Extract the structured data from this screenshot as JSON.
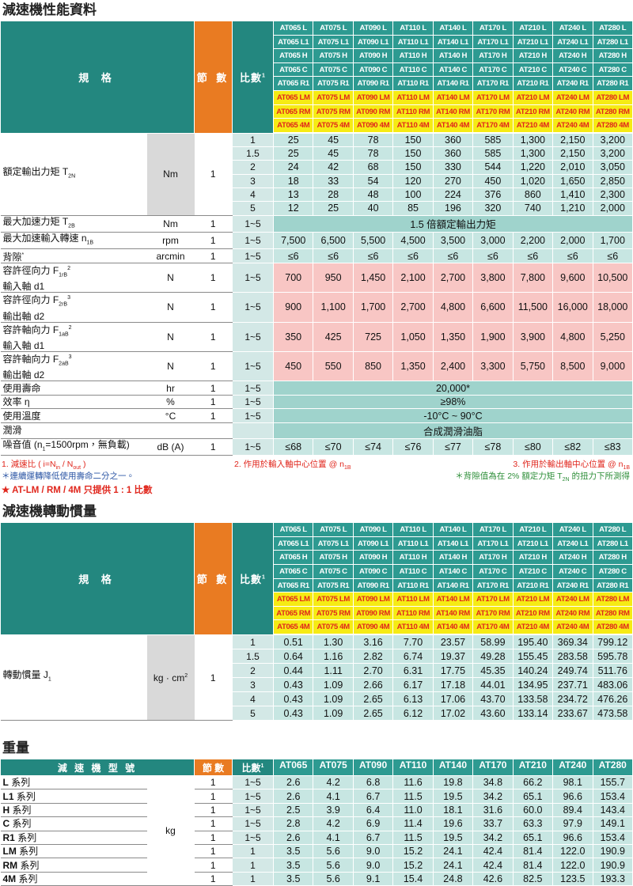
{
  "sections": [
    {
      "title": "減速機性能資料",
      "header": {
        "spec": "規 格",
        "stages": "節 數",
        "ratio": [
          "比數",
          {
            "sup": "1"
          }
        ],
        "models": [
          [
            "AT065 L",
            "AT065 L1",
            "AT065 H",
            "AT065 C",
            "AT065 R1",
            "AT065 LM",
            "AT065 RM",
            "AT065 4M"
          ],
          [
            "AT075 L",
            "AT075 L1",
            "AT075 H",
            "AT075 C",
            "AT075 R1",
            "AT075 LM",
            "AT075 RM",
            "AT075 4M"
          ],
          [
            "AT090 L",
            "AT090 L1",
            "AT090 H",
            "AT090 C",
            "AT090 R1",
            "AT090 LM",
            "AT090 RM",
            "AT090 4M"
          ],
          [
            "AT110 L",
            "AT110 L1",
            "AT110 H",
            "AT110 C",
            "AT110 R1",
            "AT110 LM",
            "AT110 RM",
            "AT110 4M"
          ],
          [
            "AT140 L",
            "AT140 L1",
            "AT140 H",
            "AT140 C",
            "AT140 R1",
            "AT140 LM",
            "AT140 RM",
            "AT140 4M"
          ],
          [
            "AT170 L",
            "AT170 L1",
            "AT170 H",
            "AT170 C",
            "AT170 R1",
            "AT170 LM",
            "AT170 RM",
            "AT170 4M"
          ],
          [
            "AT210 L",
            "AT210 L1",
            "AT210 H",
            "AT210 C",
            "AT210 R1",
            "AT210 LM",
            "AT210 RM",
            "AT210 4M"
          ],
          [
            "AT240 L",
            "AT240 L1",
            "AT240 H",
            "AT240 C",
            "AT240 R1",
            "AT240 LM",
            "AT240 RM",
            "AT240 4M"
          ],
          [
            "AT280 L",
            "AT280 L1",
            "AT280 H",
            "AT280 C",
            "AT280 R1",
            "AT280 LM",
            "AT280 RM",
            "AT280 4M"
          ]
        ]
      },
      "groups": [
        {
          "label": [
            "額定輸出力矩 T",
            {
              "sub": "2N"
            }
          ],
          "unit": "Nm",
          "stages": "1",
          "style": "light",
          "lines": [
            {
              "ratio": "1",
              "values": [
                "25",
                "45",
                "78",
                "150",
                "360",
                "585",
                "1,300",
                "2,150",
                "3,200"
              ]
            },
            {
              "ratio": "1.5",
              "values": [
                "25",
                "45",
                "78",
                "150",
                "360",
                "585",
                "1,300",
                "2,150",
                "3,200"
              ]
            },
            {
              "ratio": "2",
              "values": [
                "24",
                "42",
                "68",
                "150",
                "330",
                "544",
                "1,220",
                "2,010",
                "3,050"
              ]
            },
            {
              "ratio": "3",
              "values": [
                "18",
                "33",
                "54",
                "120",
                "270",
                "450",
                "1,020",
                "1,650",
                "2,850"
              ]
            },
            {
              "ratio": "4",
              "values": [
                "13",
                "28",
                "48",
                "100",
                "224",
                "376",
                "860",
                "1,410",
                "2,300"
              ]
            },
            {
              "ratio": "5",
              "values": [
                "12",
                "25",
                "40",
                "85",
                "196",
                "320",
                "740",
                "1,210",
                "2,000"
              ]
            }
          ]
        },
        {
          "label": [
            "最大加速力矩 T",
            {
              "sub": "2B"
            }
          ],
          "unit": "Nm",
          "stages": "1",
          "style": "merged",
          "lines": [
            {
              "ratio": "1~5",
              "merged": "1.5 倍額定輸出力矩"
            }
          ]
        },
        {
          "label": [
            "最大加速輸入轉速 n",
            {
              "sub": "1B"
            }
          ],
          "unit": "rpm",
          "stages": "1",
          "style": "light",
          "lines": [
            {
              "ratio": "1~5",
              "values": [
                "7,500",
                "6,500",
                "5,500",
                "4,500",
                "3,500",
                "3,000",
                "2,200",
                "2,000",
                "1,700"
              ]
            }
          ]
        },
        {
          "label": [
            "背隙",
            {
              "sup": "*"
            }
          ],
          "unit": "arcmin",
          "stages": "1",
          "style": "light",
          "lines": [
            {
              "ratio": "1~5",
              "values": [
                "≤6",
                "≤6",
                "≤6",
                "≤6",
                "≤6",
                "≤6",
                "≤6",
                "≤6",
                "≤6"
              ]
            }
          ]
        },
        {
          "label": [
            "容許徑向力 F",
            {
              "sub": "1rB"
            },
            {
              "sup": "2"
            }
          ],
          "label2": "輸入軸 d1",
          "unit": "N",
          "stages": "1",
          "style": "pink",
          "lines": [
            {
              "ratio": "1~5",
              "values": [
                "700",
                "950",
                "1,450",
                "2,100",
                "2,700",
                "3,800",
                "7,800",
                "9,600",
                "10,500"
              ]
            }
          ]
        },
        {
          "label": [
            "容許徑向力 F",
            {
              "sub": "2rB"
            },
            {
              "sup": "3"
            }
          ],
          "label2": "輸出軸 d2",
          "unit": "N",
          "stages": "1",
          "style": "pink",
          "lines": [
            {
              "ratio": "1~5",
              "values": [
                "900",
                "1,100",
                "1,700",
                "2,700",
                "4,800",
                "6,600",
                "11,500",
                "16,000",
                "18,000"
              ]
            }
          ]
        },
        {
          "label": [
            "容許軸向力 F",
            {
              "sub": "1aB"
            },
            {
              "sup": "2"
            }
          ],
          "label2": "輸入軸 d1",
          "unit": "N",
          "stages": "1",
          "style": "pink",
          "lines": [
            {
              "ratio": "1~5",
              "values": [
                "350",
                "425",
                "725",
                "1,050",
                "1,350",
                "1,900",
                "3,900",
                "4,800",
                "5,250"
              ]
            }
          ]
        },
        {
          "label": [
            "容許軸向力 F",
            {
              "sub": "2aB"
            },
            {
              "sup": "3"
            }
          ],
          "label2": "輸出軸 d2",
          "unit": "N",
          "stages": "1",
          "style": "pink",
          "lines": [
            {
              "ratio": "1~5",
              "values": [
                "450",
                "550",
                "850",
                "1,350",
                "2,400",
                "3,300",
                "5,750",
                "8,500",
                "9,000"
              ]
            }
          ]
        },
        {
          "label": "使用壽命",
          "unit": "hr",
          "stages": "1",
          "style": "merged",
          "lines": [
            {
              "ratio": "1~5",
              "merged": "20,000*"
            }
          ]
        },
        {
          "label": "效率 η",
          "unit": "%",
          "stages": "1",
          "style": "merged",
          "lines": [
            {
              "ratio": "1~5",
              "merged": "≥98%"
            }
          ]
        },
        {
          "label": "使用溫度",
          "unit": "°C",
          "stages": "1",
          "style": "merged",
          "lines": [
            {
              "ratio": "1~5",
              "merged": "-10°C ~ 90°C"
            }
          ]
        },
        {
          "label": "潤滑",
          "unit": null,
          "stages": null,
          "style": "merged",
          "lines": [
            {
              "ratio": null,
              "merged": "合成潤滑油脂"
            }
          ]
        },
        {
          "label": [
            "噪音值 (n",
            {
              "sub": "1"
            },
            "=1500rpm，無負載)"
          ],
          "unit": "dB (A)",
          "stages": "1",
          "style": "light",
          "lines": [
            {
              "ratio": "1~5",
              "values": [
                "≤68",
                "≤70",
                "≤74",
                "≤76",
                "≤77",
                "≤78",
                "≤80",
                "≤82",
                "≤83"
              ]
            }
          ]
        }
      ],
      "notes": {
        "ratio": [
          "1. 減速比 ( i=N",
          {
            "sub": "in"
          },
          " / N",
          {
            "sub": "out"
          },
          " )"
        ],
        "input": [
          "2. 作用於輸入軸中心位置 @ n",
          {
            "sub": "1B"
          }
        ],
        "output": [
          "3. 作用於輸出軸中心位置 @ n",
          {
            "sub": "1B"
          }
        ],
        "life": "＊連續運轉降低使用壽命二分之一。",
        "backlash": [
          "＊背隙值為在 2% 額定力矩 T",
          {
            "sub": "2N"
          },
          " 的扭力下所測得"
        ],
        "star": "★ AT-LM / RM / 4M 只提供 1 : 1 比數"
      }
    },
    {
      "title": "減速機轉動慣量",
      "header": {
        "spec": "規 格",
        "stages": "節 數",
        "ratio": [
          "比數",
          {
            "sup": "1"
          }
        ],
        "models": [
          [
            "AT065 L",
            "AT065 L1",
            "AT065 H",
            "AT065 C",
            "AT065 R1",
            "AT065 LM",
            "AT065 RM",
            "AT065 4M"
          ],
          [
            "AT075 L",
            "AT075 L1",
            "AT075 H",
            "AT075 C",
            "AT075 R1",
            "AT075 LM",
            "AT075 RM",
            "AT075 4M"
          ],
          [
            "AT090 L",
            "AT090 L1",
            "AT090 H",
            "AT090 C",
            "AT090 R1",
            "AT090 LM",
            "AT090 RM",
            "AT090 4M"
          ],
          [
            "AT110 L",
            "AT110 L1",
            "AT110 H",
            "AT110 C",
            "AT110 R1",
            "AT110 LM",
            "AT110 RM",
            "AT110 4M"
          ],
          [
            "AT140 L",
            "AT140 L1",
            "AT140 H",
            "AT140 C",
            "AT140 R1",
            "AT140 LM",
            "AT140 RM",
            "AT140 4M"
          ],
          [
            "AT170 L",
            "AT170 L1",
            "AT170 H",
            "AT170 C",
            "AT170 R1",
            "AT170 LM",
            "AT170 RM",
            "AT170 4M"
          ],
          [
            "AT210 L",
            "AT210 L1",
            "AT210 H",
            "AT210 C",
            "AT210 R1",
            "AT210 LM",
            "AT210 RM",
            "AT210 4M"
          ],
          [
            "AT240 L",
            "AT240 L1",
            "AT240 H",
            "AT240 C",
            "AT240 R1",
            "AT240 LM",
            "AT240 RM",
            "AT240 4M"
          ],
          [
            "AT280 L",
            "AT280 L1",
            "AT280 H",
            "AT280 C",
            "AT280 R1",
            "AT280 LM",
            "AT280 RM",
            "AT280 4M"
          ]
        ]
      },
      "groups": [
        {
          "label": [
            "轉動慣量 J",
            {
              "sub": "1"
            }
          ],
          "unit": [
            "kg · cm",
            {
              "sup": "2"
            }
          ],
          "stages": "1",
          "style": "light",
          "lines": [
            {
              "ratio": "1",
              "values": [
                "0.51",
                "1.30",
                "3.16",
                "7.70",
                "23.57",
                "58.99",
                "195.40",
                "369.34",
                "799.12"
              ]
            },
            {
              "ratio": "1.5",
              "values": [
                "0.64",
                "1.16",
                "2.82",
                "6.74",
                "19.37",
                "49.28",
                "155.45",
                "283.58",
                "595.78"
              ]
            },
            {
              "ratio": "2",
              "values": [
                "0.44",
                "1.11",
                "2.70",
                "6.31",
                "17.75",
                "45.35",
                "140.24",
                "249.74",
                "511.76"
              ]
            },
            {
              "ratio": "3",
              "values": [
                "0.43",
                "1.09",
                "2.66",
                "6.17",
                "17.18",
                "44.01",
                "134.95",
                "237.71",
                "483.06"
              ]
            },
            {
              "ratio": "4",
              "values": [
                "0.43",
                "1.09",
                "2.65",
                "6.13",
                "17.06",
                "43.70",
                "133.58",
                "234.72",
                "476.26"
              ]
            },
            {
              "ratio": "5",
              "values": [
                "0.43",
                "1.09",
                "2.65",
                "6.12",
                "17.02",
                "43.60",
                "133.14",
                "233.67",
                "473.58"
              ]
            }
          ]
        }
      ]
    },
    {
      "title": "重量",
      "header": {
        "spec": "減 速 機 型 號",
        "stages": "節 數",
        "ratio": [
          "比數",
          {
            "sup": "1"
          }
        ],
        "models": [
          "AT065",
          "AT075",
          "AT090",
          "AT110",
          "AT140",
          "AT170",
          "AT210",
          "AT240",
          "AT280"
        ]
      },
      "unit": "kg",
      "rows": [
        {
          "name": "L",
          "suffix": "系列",
          "stages": "1",
          "ratio": "1~5",
          "values": [
            "2.6",
            "4.2",
            "6.8",
            "11.6",
            "19.8",
            "34.8",
            "66.2",
            "98.1",
            "155.7"
          ]
        },
        {
          "name": "L1",
          "suffix": "系列",
          "stages": "1",
          "ratio": "1~5",
          "values": [
            "2.6",
            "4.1",
            "6.7",
            "11.5",
            "19.5",
            "34.2",
            "65.1",
            "96.6",
            "153.4"
          ]
        },
        {
          "name": "H",
          "suffix": "系列",
          "stages": "1",
          "ratio": "1~5",
          "values": [
            "2.5",
            "3.9",
            "6.4",
            "11.0",
            "18.1",
            "31.6",
            "60.0",
            "89.4",
            "143.4"
          ]
        },
        {
          "name": "C",
          "suffix": "系列",
          "stages": "1",
          "ratio": "1~5",
          "values": [
            "2.8",
            "4.2",
            "6.9",
            "11.4",
            "19.6",
            "33.7",
            "63.3",
            "97.9",
            "149.1"
          ]
        },
        {
          "name": "R1",
          "suffix": "系列",
          "stages": "1",
          "ratio": "1~5",
          "values": [
            "2.6",
            "4.1",
            "6.7",
            "11.5",
            "19.5",
            "34.2",
            "65.1",
            "96.6",
            "153.4"
          ]
        },
        {
          "name": "LM",
          "suffix": "系列",
          "stages": "1",
          "ratio": "1",
          "values": [
            "3.5",
            "5.6",
            "9.0",
            "15.2",
            "24.1",
            "42.4",
            "81.4",
            "122.0",
            "190.9"
          ]
        },
        {
          "name": "RM",
          "suffix": "系列",
          "stages": "1",
          "ratio": "1",
          "values": [
            "3.5",
            "5.6",
            "9.0",
            "15.2",
            "24.1",
            "42.4",
            "81.4",
            "122.0",
            "190.9"
          ]
        },
        {
          "name": "4M",
          "suffix": "系列",
          "stages": "1",
          "ratio": "1",
          "values": [
            "3.5",
            "5.6",
            "9.1",
            "15.4",
            "24.8",
            "42.6",
            "82.5",
            "123.5",
            "193.3"
          ]
        }
      ]
    }
  ]
}
